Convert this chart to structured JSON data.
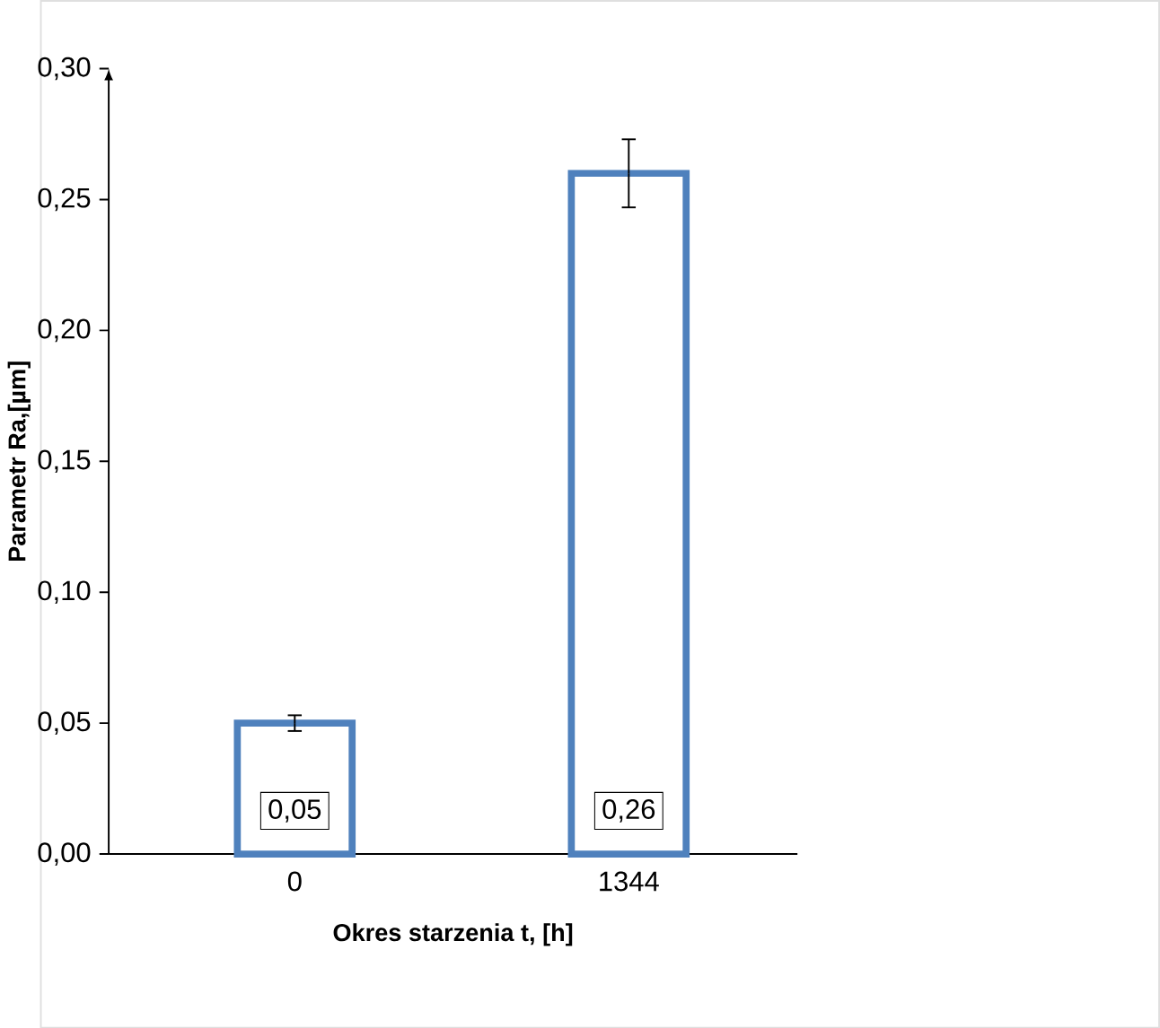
{
  "chart_data": {
    "type": "bar",
    "xlabel": "Okres starzenia t, [h]",
    "ylabel": "Parametr Ra,[µm]",
    "categories": [
      "0",
      "1344"
    ],
    "values": [
      0.05,
      0.26
    ],
    "errors": [
      0.003,
      0.013
    ],
    "value_labels": [
      "0,05",
      "0,26"
    ],
    "color": "#4f81bd",
    "ylim": [
      0,
      0.3
    ],
    "yticks": [
      {
        "value": 0,
        "label": "0,00"
      },
      {
        "value": 0.05,
        "label": "0,05"
      },
      {
        "value": 0.1,
        "label": "0,10"
      },
      {
        "value": 0.15,
        "label": "0,15"
      },
      {
        "value": 0.2,
        "label": "0,20"
      },
      {
        "value": 0.25,
        "label": "0,25"
      },
      {
        "value": 0.3,
        "label": "0,30"
      }
    ],
    "grid": false
  }
}
